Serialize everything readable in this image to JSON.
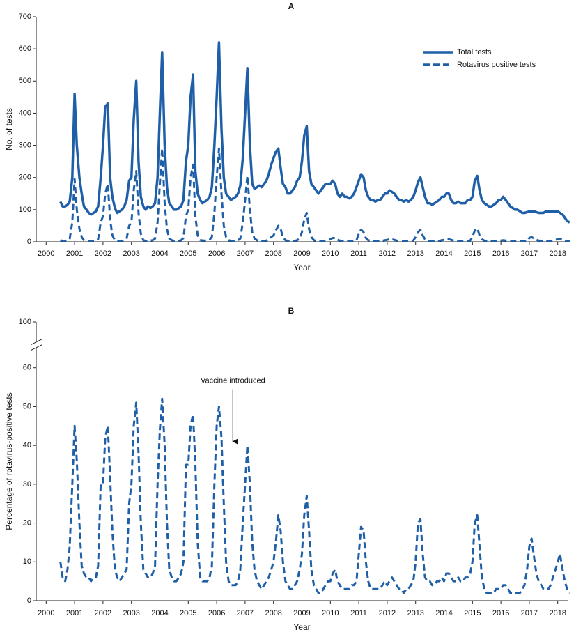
{
  "chart_data": [
    {
      "type": "line",
      "title": "A",
      "xlabel": "Year",
      "ylabel": "No. of tests",
      "legend": "upper right",
      "xlim": [
        1999.65,
        2018.35
      ],
      "xticks": [
        2000,
        2001,
        2002,
        2003,
        2004,
        2005,
        2006,
        2007,
        2008,
        2009,
        2010,
        2011,
        2012,
        2013,
        2014,
        2015,
        2016,
        2017,
        2018
      ],
      "ylim": [
        0,
        700
      ],
      "yticks": [
        0,
        100,
        200,
        300,
        400,
        500,
        600,
        700
      ],
      "x": [
        2000.5,
        2000.58,
        2000.67,
        2000.75,
        2000.83,
        2000.92,
        2001,
        2001.08,
        2001.17,
        2001.25,
        2001.33,
        2001.42,
        2001.5,
        2001.58,
        2001.67,
        2001.75,
        2001.83,
        2001.92,
        2002,
        2002.08,
        2002.17,
        2002.25,
        2002.33,
        2002.42,
        2002.5,
        2002.58,
        2002.67,
        2002.75,
        2002.83,
        2002.92,
        2003,
        2003.08,
        2003.17,
        2003.25,
        2003.33,
        2003.42,
        2003.5,
        2003.58,
        2003.67,
        2003.75,
        2003.83,
        2003.92,
        2004,
        2004.08,
        2004.17,
        2004.25,
        2004.33,
        2004.42,
        2004.5,
        2004.58,
        2004.67,
        2004.75,
        2004.83,
        2004.92,
        2005,
        2005.08,
        2005.17,
        2005.25,
        2005.33,
        2005.42,
        2005.5,
        2005.58,
        2005.67,
        2005.75,
        2005.83,
        2005.92,
        2006,
        2006.08,
        2006.17,
        2006.25,
        2006.33,
        2006.42,
        2006.5,
        2006.58,
        2006.67,
        2006.75,
        2006.83,
        2006.92,
        2007,
        2007.08,
        2007.17,
        2007.25,
        2007.33,
        2007.42,
        2007.5,
        2007.58,
        2007.67,
        2007.75,
        2007.83,
        2007.92,
        2008,
        2008.08,
        2008.17,
        2008.25,
        2008.33,
        2008.42,
        2008.5,
        2008.58,
        2008.67,
        2008.75,
        2008.83,
        2008.92,
        2009,
        2009.08,
        2009.17,
        2009.25,
        2009.33,
        2009.42,
        2009.5,
        2009.58,
        2009.67,
        2009.75,
        2009.83,
        2009.92,
        2010,
        2010.08,
        2010.17,
        2010.25,
        2010.33,
        2010.42,
        2010.5,
        2010.58,
        2010.67,
        2010.75,
        2010.83,
        2010.92,
        2011,
        2011.08,
        2011.17,
        2011.25,
        2011.33,
        2011.42,
        2011.5,
        2011.58,
        2011.67,
        2011.75,
        2011.83,
        2011.92,
        2012,
        2012.08,
        2012.17,
        2012.25,
        2012.33,
        2012.42,
        2012.5,
        2012.58,
        2012.67,
        2012.75,
        2012.83,
        2012.92,
        2013,
        2013.08,
        2013.17,
        2013.25,
        2013.33,
        2013.42,
        2013.5,
        2013.58,
        2013.67,
        2013.75,
        2013.83,
        2013.92,
        2014,
        2014.08,
        2014.17,
        2014.25,
        2014.33,
        2014.42,
        2014.5,
        2014.58,
        2014.67,
        2014.75,
        2014.83,
        2014.92,
        2015,
        2015.08,
        2015.17,
        2015.25,
        2015.33,
        2015.42,
        2015.5,
        2015.58,
        2015.67,
        2015.75,
        2015.83,
        2015.92,
        2016,
        2016.08,
        2016.17,
        2016.25,
        2016.33,
        2016.42,
        2016.5,
        2016.58,
        2016.67,
        2016.75,
        2016.83,
        2016.92,
        2017,
        2017.08,
        2017.17,
        2017.25,
        2017.33,
        2017.42,
        2017.5,
        2017.58,
        2017.67,
        2017.75,
        2017.83,
        2017.92,
        2018,
        2018.08,
        2018.17,
        2018.25,
        2018.33,
        2018.42
      ],
      "series": [
        {
          "name": "Total tests",
          "color": "#1f5fa8",
          "line_style": "solid",
          "values": [
            125,
            110,
            110,
            115,
            125,
            200,
            460,
            300,
            200,
            150,
            110,
            100,
            90,
            85,
            90,
            95,
            110,
            200,
            300,
            420,
            430,
            200,
            140,
            105,
            90,
            95,
            100,
            110,
            130,
            190,
            200,
            380,
            500,
            250,
            140,
            110,
            100,
            110,
            105,
            110,
            120,
            200,
            400,
            590,
            300,
            170,
            120,
            110,
            100,
            100,
            105,
            110,
            130,
            250,
            300,
            450,
            520,
            220,
            150,
            130,
            120,
            125,
            130,
            140,
            170,
            300,
            450,
            620,
            350,
            200,
            150,
            140,
            130,
            135,
            140,
            150,
            175,
            260,
            400,
            540,
            300,
            180,
            165,
            170,
            175,
            170,
            180,
            190,
            210,
            240,
            260,
            280,
            290,
            230,
            180,
            170,
            150,
            150,
            160,
            170,
            190,
            200,
            250,
            330,
            360,
            220,
            180,
            170,
            160,
            150,
            160,
            170,
            180,
            180,
            180,
            190,
            180,
            150,
            140,
            150,
            140,
            140,
            135,
            140,
            150,
            170,
            190,
            210,
            200,
            160,
            140,
            130,
            130,
            125,
            130,
            130,
            140,
            150,
            150,
            160,
            155,
            150,
            140,
            130,
            130,
            125,
            130,
            125,
            130,
            140,
            160,
            185,
            200,
            170,
            140,
            120,
            120,
            115,
            120,
            125,
            130,
            140,
            140,
            150,
            150,
            130,
            120,
            120,
            125,
            120,
            120,
            120,
            130,
            130,
            140,
            190,
            205,
            160,
            130,
            120,
            115,
            110,
            110,
            115,
            120,
            130,
            130,
            140,
            130,
            120,
            110,
            105,
            100,
            100,
            95,
            90,
            90,
            92,
            95,
            95,
            95,
            92,
            90,
            90,
            90,
            95,
            95,
            95,
            95,
            95,
            95,
            90,
            85,
            75,
            65,
            60
          ]
        },
        {
          "name": "Rotavirus positive tests",
          "color": "#1f5fa8",
          "line_style": "dashed",
          "values": [
            5,
            3,
            2,
            3,
            10,
            60,
            195,
            100,
            40,
            15,
            5,
            3,
            2,
            2,
            2,
            3,
            8,
            60,
            80,
            150,
            180,
            70,
            20,
            5,
            3,
            2,
            3,
            5,
            10,
            50,
            60,
            160,
            220,
            90,
            25,
            5,
            3,
            3,
            4,
            5,
            10,
            60,
            180,
            290,
            120,
            40,
            10,
            5,
            3,
            3,
            3,
            5,
            12,
            80,
            100,
            200,
            240,
            80,
            20,
            6,
            4,
            4,
            4,
            6,
            15,
            90,
            200,
            290,
            150,
            50,
            15,
            5,
            3,
            3,
            3,
            5,
            10,
            60,
            130,
            205,
            100,
            30,
            10,
            5,
            3,
            3,
            3,
            4,
            8,
            15,
            20,
            35,
            50,
            40,
            15,
            5,
            3,
            2,
            3,
            3,
            5,
            10,
            30,
            70,
            90,
            40,
            15,
            5,
            3,
            2,
            2,
            3,
            4,
            6,
            8,
            12,
            12,
            6,
            4,
            3,
            2,
            2,
            2,
            2,
            3,
            5,
            25,
            38,
            30,
            12,
            5,
            3,
            2,
            2,
            2,
            2,
            3,
            5,
            6,
            8,
            8,
            6,
            4,
            3,
            2,
            2,
            2,
            2,
            2,
            4,
            15,
            30,
            38,
            20,
            8,
            4,
            2,
            2,
            2,
            2,
            3,
            5,
            6,
            8,
            8,
            6,
            4,
            3,
            2,
            2,
            2,
            2,
            3,
            4,
            15,
            35,
            42,
            20,
            8,
            4,
            2,
            2,
            2,
            2,
            2,
            3,
            4,
            5,
            4,
            3,
            2,
            2,
            1,
            1,
            1,
            1,
            2,
            2,
            12,
            15,
            10,
            6,
            4,
            3,
            2,
            2,
            2,
            3,
            4,
            6,
            8,
            10,
            8,
            4,
            2,
            1
          ]
        }
      ]
    },
    {
      "type": "line",
      "title": "B",
      "xlabel": "Year",
      "ylabel": "Percentage of rotavirus-positive tests",
      "xlim": [
        1999.65,
        2018.35
      ],
      "xticks": [
        2000,
        2001,
        2002,
        2003,
        2004,
        2005,
        2006,
        2007,
        2008,
        2009,
        2010,
        2011,
        2012,
        2013,
        2014,
        2015,
        2016,
        2017,
        2018
      ],
      "ylim": [
        0,
        100
      ],
      "yticks": [
        0,
        10,
        20,
        30,
        40,
        50,
        60,
        100
      ],
      "y_break": [
        65,
        95
      ],
      "annotation": {
        "text": "Vaccine introduced",
        "x": 2006.57,
        "y": 41
      },
      "color": "#1f5fa8",
      "line_style": "dashed",
      "x": [
        2000.5,
        2000.58,
        2000.67,
        2000.75,
        2000.83,
        2000.92,
        2001,
        2001.08,
        2001.17,
        2001.25,
        2001.33,
        2001.42,
        2001.5,
        2001.58,
        2001.67,
        2001.75,
        2001.83,
        2001.92,
        2002,
        2002.08,
        2002.17,
        2002.25,
        2002.33,
        2002.42,
        2002.5,
        2002.58,
        2002.67,
        2002.75,
        2002.83,
        2002.92,
        2003,
        2003.08,
        2003.17,
        2003.25,
        2003.33,
        2003.42,
        2003.5,
        2003.58,
        2003.67,
        2003.75,
        2003.83,
        2003.92,
        2004,
        2004.08,
        2004.17,
        2004.25,
        2004.33,
        2004.42,
        2004.5,
        2004.58,
        2004.67,
        2004.75,
        2004.83,
        2004.92,
        2005,
        2005.08,
        2005.17,
        2005.25,
        2005.33,
        2005.42,
        2005.5,
        2005.58,
        2005.67,
        2005.75,
        2005.83,
        2005.92,
        2006,
        2006.08,
        2006.17,
        2006.25,
        2006.33,
        2006.42,
        2006.5,
        2006.58,
        2006.67,
        2006.75,
        2006.83,
        2006.92,
        2007,
        2007.08,
        2007.17,
        2007.25,
        2007.33,
        2007.42,
        2007.5,
        2007.58,
        2007.67,
        2007.75,
        2007.83,
        2007.92,
        2008,
        2008.08,
        2008.17,
        2008.25,
        2008.33,
        2008.42,
        2008.5,
        2008.58,
        2008.67,
        2008.75,
        2008.83,
        2008.92,
        2009,
        2009.08,
        2009.17,
        2009.25,
        2009.33,
        2009.42,
        2009.5,
        2009.58,
        2009.67,
        2009.75,
        2009.83,
        2009.92,
        2010,
        2010.08,
        2010.17,
        2010.25,
        2010.33,
        2010.42,
        2010.5,
        2010.58,
        2010.67,
        2010.75,
        2010.83,
        2010.92,
        2011,
        2011.08,
        2011.17,
        2011.25,
        2011.33,
        2011.42,
        2011.5,
        2011.58,
        2011.67,
        2011.75,
        2011.83,
        2011.92,
        2012,
        2012.08,
        2012.17,
        2012.25,
        2012.33,
        2012.42,
        2012.5,
        2012.58,
        2012.67,
        2012.75,
        2012.83,
        2012.92,
        2013,
        2013.08,
        2013.17,
        2013.25,
        2013.33,
        2013.42,
        2013.5,
        2013.58,
        2013.67,
        2013.75,
        2013.83,
        2013.92,
        2014,
        2014.08,
        2014.17,
        2014.25,
        2014.33,
        2014.42,
        2014.5,
        2014.58,
        2014.67,
        2014.75,
        2014.83,
        2014.92,
        2015,
        2015.08,
        2015.17,
        2015.25,
        2015.33,
        2015.42,
        2015.5,
        2015.58,
        2015.67,
        2015.75,
        2015.83,
        2015.92,
        2016,
        2016.08,
        2016.17,
        2016.25,
        2016.33,
        2016.42,
        2016.5,
        2016.58,
        2016.67,
        2016.75,
        2016.83,
        2016.92,
        2017,
        2017.08,
        2017.17,
        2017.25,
        2017.33,
        2017.42,
        2017.5,
        2017.58,
        2017.67,
        2017.75,
        2017.83,
        2017.92,
        2018,
        2018.08,
        2018.17,
        2018.25,
        2018.33,
        2018.42
      ],
      "values": [
        10,
        6,
        5,
        8,
        14,
        30,
        45,
        36,
        20,
        9,
        7,
        6,
        6,
        5,
        6,
        6,
        9,
        30,
        30,
        42,
        45,
        32,
        18,
        8,
        6,
        5,
        6,
        7,
        8,
        25,
        30,
        45,
        51,
        38,
        20,
        8,
        7,
        6,
        6,
        7,
        9,
        30,
        44,
        52,
        40,
        20,
        8,
        6,
        5,
        5,
        6,
        7,
        10,
        35,
        35,
        45,
        48,
        35,
        15,
        6,
        5,
        5,
        5,
        6,
        9,
        30,
        45,
        50,
        42,
        25,
        10,
        5,
        4,
        4,
        4,
        5,
        8,
        20,
        30,
        40,
        30,
        15,
        8,
        5,
        4,
        3,
        4,
        5,
        6,
        8,
        10,
        15,
        22,
        18,
        10,
        5,
        4,
        3,
        3,
        4,
        5,
        8,
        12,
        22,
        27,
        18,
        8,
        4,
        3,
        2,
        2,
        3,
        4,
        5,
        5,
        7,
        8,
        5,
        4,
        3,
        3,
        3,
        3,
        4,
        4,
        5,
        12,
        19,
        18,
        10,
        5,
        3,
        3,
        3,
        3,
        3,
        4,
        5,
        4,
        5,
        6,
        5,
        4,
        3,
        3,
        2,
        3,
        3,
        4,
        5,
        10,
        20,
        21,
        12,
        6,
        5,
        5,
        4,
        4,
        5,
        5,
        6,
        5,
        7,
        7,
        6,
        5,
        5,
        6,
        5,
        5,
        6,
        6,
        7,
        10,
        20,
        22,
        14,
        6,
        3,
        2,
        2,
        2,
        2,
        3,
        3,
        3,
        4,
        4,
        3,
        2,
        2,
        2,
        2,
        2,
        3,
        4,
        8,
        14,
        16,
        11,
        7,
        5,
        4,
        3,
        3,
        3,
        4,
        6,
        8,
        10,
        12,
        8,
        5,
        3,
        2
      ]
    }
  ]
}
